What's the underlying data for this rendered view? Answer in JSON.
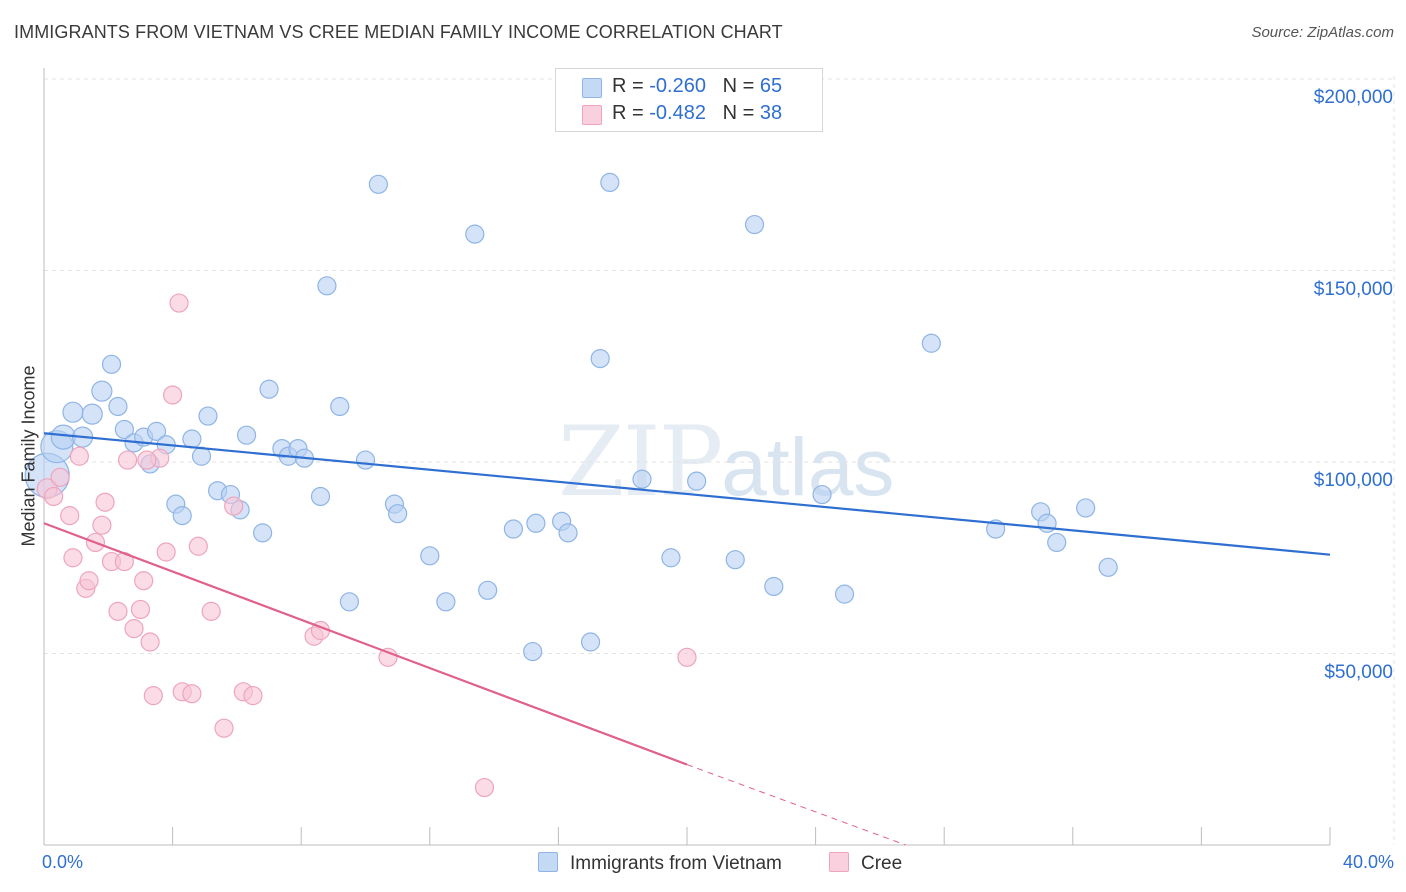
{
  "title": "IMMIGRANTS FROM VIETNAM VS CREE MEDIAN FAMILY INCOME CORRELATION CHART",
  "source": "Source: ZipAtlas.com",
  "watermark": {
    "zip": "ZIP",
    "atlas": "atlas"
  },
  "legend": {
    "rows": [
      {
        "r_label": "R =",
        "r_value": "-0.260",
        "n_label": "N =",
        "n_value": "65",
        "color": "#a9c8ef"
      },
      {
        "r_label": "R =",
        "r_value": "-0.482",
        "n_label": "N =",
        "n_value": "38",
        "color": "#f5b7cb"
      }
    ]
  },
  "colors": {
    "vietnam_fill": "#b7d1f1",
    "vietnam_stroke": "#8fb5e6",
    "vietnam_line": "#2f6fd1",
    "cree_fill": "#f8c5d6",
    "cree_stroke": "#eea4be",
    "cree_line": "#e0608e",
    "grid": "#e3e3e3",
    "axis_text": "#2f6fd1"
  },
  "chart_data": {
    "type": "scatter",
    "xlabel": "",
    "ylabel": "Median Family Income",
    "x_min_label": "0.0%",
    "x_max_label": "40.0%",
    "xlim": [
      0,
      40
    ],
    "ylim": [
      0,
      205000
    ],
    "y_ticks": [
      {
        "value": 50000,
        "label": "$50,000"
      },
      {
        "value": 100000,
        "label": "$100,000"
      },
      {
        "value": 150000,
        "label": "$150,000"
      },
      {
        "value": 200000,
        "label": "$200,000"
      }
    ],
    "grid": true,
    "legend_position": "top-center",
    "series": [
      {
        "name": "Immigrants from Vietnam",
        "trend": {
          "x": [
            0,
            40
          ],
          "y": [
            107500,
            75800
          ],
          "dashed_from": null
        },
        "points": [
          [
            0.1,
            96500,
            22
          ],
          [
            0.4,
            104000,
            16
          ],
          [
            0.6,
            106500,
            12
          ],
          [
            0.9,
            113000,
            10
          ],
          [
            1.2,
            106500,
            10
          ],
          [
            1.5,
            112500,
            10
          ],
          [
            1.8,
            118500,
            10
          ],
          [
            2.1,
            125500,
            9
          ],
          [
            2.3,
            114500,
            9
          ],
          [
            2.5,
            108500,
            9
          ],
          [
            2.8,
            105000,
            9
          ],
          [
            3.1,
            106500,
            9
          ],
          [
            3.3,
            99500,
            9
          ],
          [
            3.5,
            108000,
            9
          ],
          [
            3.8,
            104500,
            9
          ],
          [
            4.1,
            89000,
            9
          ],
          [
            4.3,
            86000,
            9
          ],
          [
            4.6,
            106000,
            9
          ],
          [
            4.9,
            101500,
            9
          ],
          [
            5.1,
            112000,
            9
          ],
          [
            5.4,
            92500,
            9
          ],
          [
            5.8,
            91500,
            9
          ],
          [
            6.1,
            87500,
            9
          ],
          [
            6.3,
            107000,
            9
          ],
          [
            6.8,
            81500,
            9
          ],
          [
            7.0,
            119000,
            9
          ],
          [
            7.4,
            103500,
            9
          ],
          [
            7.6,
            101500,
            9
          ],
          [
            7.9,
            103500,
            9
          ],
          [
            8.1,
            101000,
            9
          ],
          [
            8.6,
            91000,
            9
          ],
          [
            8.8,
            146000,
            9
          ],
          [
            9.2,
            114500,
            9
          ],
          [
            9.5,
            63500,
            9
          ],
          [
            10.0,
            100500,
            9
          ],
          [
            10.4,
            172500,
            9
          ],
          [
            10.9,
            89000,
            9
          ],
          [
            11.0,
            86500,
            9
          ],
          [
            12.0,
            75500,
            9
          ],
          [
            12.5,
            63500,
            9
          ],
          [
            13.4,
            159500,
            9
          ],
          [
            13.8,
            66500,
            9
          ],
          [
            14.6,
            82500,
            9
          ],
          [
            15.2,
            50500,
            9
          ],
          [
            15.3,
            84000,
            9
          ],
          [
            16.1,
            84500,
            9
          ],
          [
            16.3,
            81500,
            9
          ],
          [
            17.0,
            53000,
            9
          ],
          [
            17.3,
            127000,
            9
          ],
          [
            17.6,
            173000,
            9
          ],
          [
            18.6,
            95500,
            9
          ],
          [
            19.5,
            75000,
            9
          ],
          [
            20.3,
            95000,
            9
          ],
          [
            21.5,
            74500,
            9
          ],
          [
            22.1,
            162000,
            9
          ],
          [
            22.7,
            67500,
            9
          ],
          [
            24.2,
            91500,
            9
          ],
          [
            24.9,
            65500,
            9
          ],
          [
            27.6,
            131000,
            9
          ],
          [
            29.6,
            82500,
            9
          ],
          [
            31.0,
            87000,
            9
          ],
          [
            31.2,
            84000,
            9
          ],
          [
            31.5,
            79000,
            9
          ],
          [
            32.4,
            88000,
            9
          ],
          [
            33.1,
            72500,
            9
          ]
        ]
      },
      {
        "name": "Cree",
        "trend": {
          "x": [
            0,
            20,
            26.8
          ],
          "y": [
            84000,
            21000,
            0
          ],
          "dashed_from": 20
        },
        "points": [
          [
            0.1,
            93000,
            10
          ],
          [
            0.3,
            91000,
            9
          ],
          [
            0.5,
            96000,
            9
          ],
          [
            0.8,
            86000,
            9
          ],
          [
            0.9,
            75000,
            9
          ],
          [
            1.1,
            101500,
            9
          ],
          [
            1.3,
            67000,
            9
          ],
          [
            1.4,
            69000,
            9
          ],
          [
            1.6,
            79000,
            9
          ],
          [
            1.8,
            83500,
            9
          ],
          [
            1.9,
            89500,
            9
          ],
          [
            2.1,
            74000,
            9
          ],
          [
            2.3,
            61000,
            9
          ],
          [
            2.5,
            74000,
            9
          ],
          [
            2.6,
            100500,
            9
          ],
          [
            2.8,
            56500,
            9
          ],
          [
            3.0,
            61500,
            9
          ],
          [
            3.1,
            69000,
            9
          ],
          [
            3.3,
            53000,
            9
          ],
          [
            3.4,
            39000,
            9
          ],
          [
            3.6,
            101000,
            9
          ],
          [
            3.8,
            76500,
            9
          ],
          [
            4.0,
            117500,
            9
          ],
          [
            4.2,
            141500,
            9
          ],
          [
            4.3,
            40000,
            9
          ],
          [
            4.6,
            39500,
            9
          ],
          [
            4.8,
            78000,
            9
          ],
          [
            5.2,
            61000,
            9
          ],
          [
            5.6,
            30500,
            9
          ],
          [
            5.9,
            88500,
            9
          ],
          [
            6.2,
            40000,
            9
          ],
          [
            6.5,
            39000,
            9
          ],
          [
            8.4,
            54500,
            9
          ],
          [
            8.6,
            56000,
            9
          ],
          [
            10.7,
            49000,
            9
          ],
          [
            13.7,
            15000,
            9
          ],
          [
            20.0,
            49000,
            9
          ],
          [
            3.2,
            100500,
            9
          ]
        ]
      }
    ]
  }
}
